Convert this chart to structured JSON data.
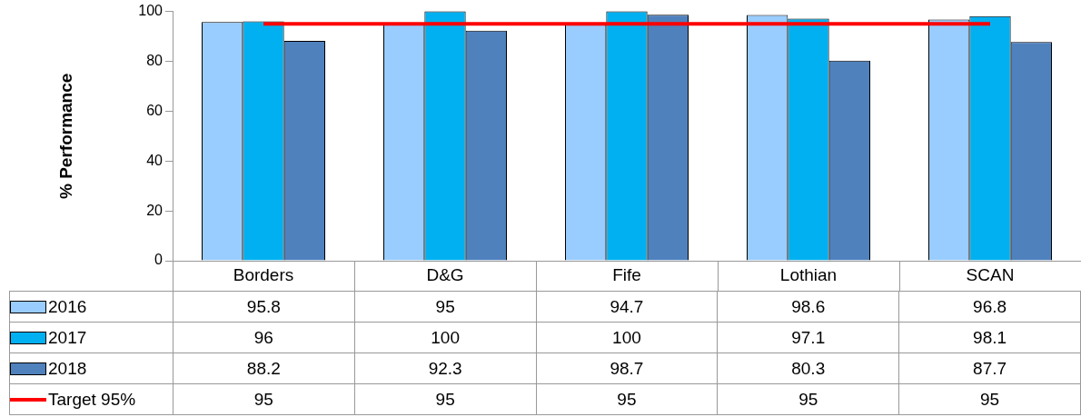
{
  "chart_data": {
    "type": "bar",
    "ylabel": "% Performance",
    "categories": [
      "Borders",
      "D&G",
      "Fife",
      "Lothian",
      "SCAN"
    ],
    "series": [
      {
        "name": "2016",
        "color": "#99ccff",
        "values": [
          95.8,
          95,
          94.7,
          98.6,
          96.8
        ]
      },
      {
        "name": "2017",
        "color": "#00b0f0",
        "values": [
          96,
          100,
          100,
          97.1,
          98.1
        ]
      },
      {
        "name": "2018",
        "color": "#4f81bd",
        "values": [
          88.2,
          92.3,
          98.7,
          80.3,
          87.7
        ]
      },
      {
        "name": "Target 95%",
        "type": "line",
        "color": "#ff0000",
        "values": [
          95,
          95,
          95,
          95,
          95
        ]
      }
    ],
    "ylim": [
      0,
      100
    ],
    "yticks": [
      0,
      20,
      40,
      60,
      80,
      100
    ],
    "grid": false,
    "legend": "bottom",
    "data_labels": true,
    "marker": "none"
  }
}
